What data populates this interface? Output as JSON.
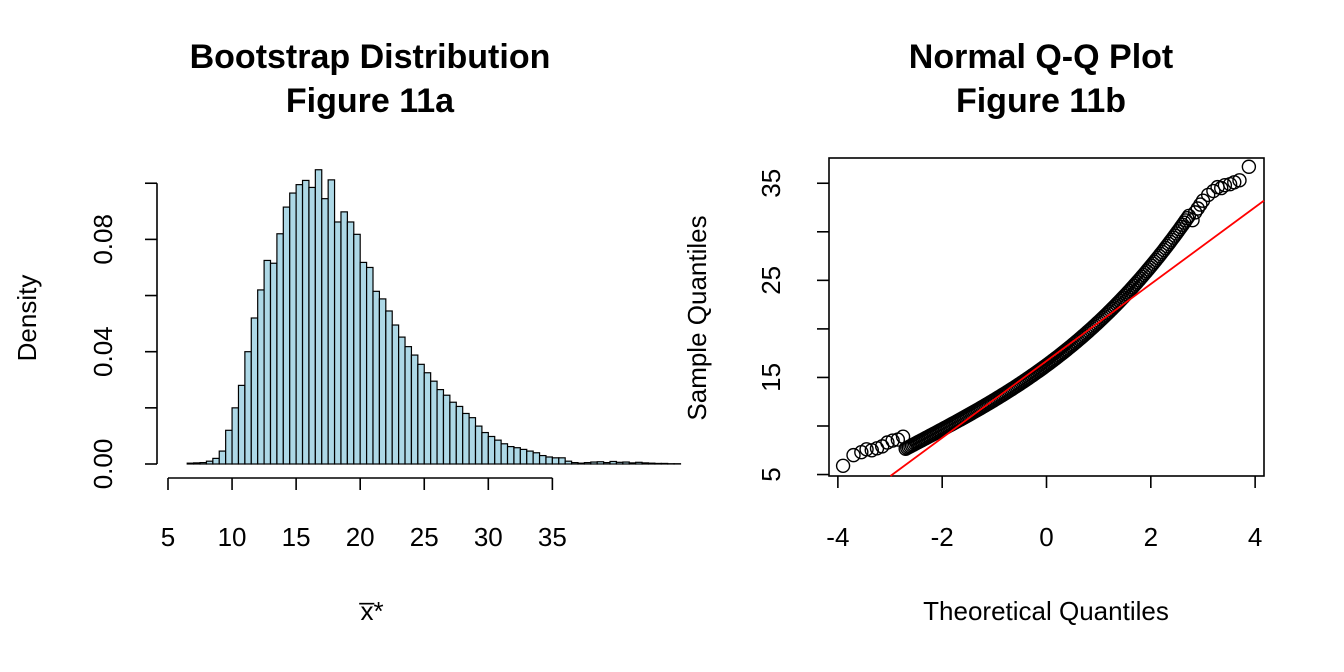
{
  "chart_data": [
    {
      "type": "bar",
      "title": [
        "Bootstrap Distribution",
        "Figure 11a"
      ],
      "xlabel": "x̅*",
      "ylabel": "Density",
      "xlim": [
        5,
        37
      ],
      "ylim": [
        0,
        0.104
      ],
      "xticks": [
        5,
        10,
        15,
        20,
        25,
        30,
        35
      ],
      "yticks": [
        0.0,
        0.04,
        0.08
      ],
      "ytick_labels": [
        "0.00",
        "0.04",
        "0.08"
      ],
      "grid": false,
      "bin_width": 0.5,
      "bar_color": "#add8e6",
      "bins_start": 5.5,
      "densities": [
        0.0,
        0.0,
        0.0003,
        0.0004,
        0.0005,
        0.001,
        0.002,
        0.0046,
        0.012,
        0.02,
        0.028,
        0.04,
        0.052,
        0.062,
        0.0725,
        0.0715,
        0.082,
        0.0915,
        0.0965,
        0.0995,
        0.101,
        0.0985,
        0.1048,
        0.0945,
        0.1012,
        0.0862,
        0.0898,
        0.0862,
        0.0818,
        0.0718,
        0.07,
        0.0615,
        0.0588,
        0.0545,
        0.0495,
        0.0452,
        0.0418,
        0.0388,
        0.0355,
        0.0325,
        0.0295,
        0.0265,
        0.0245,
        0.022,
        0.0205,
        0.018,
        0.0165,
        0.0135,
        0.0112,
        0.0098,
        0.0085,
        0.0072,
        0.0062,
        0.0058,
        0.0052,
        0.0046,
        0.004,
        0.003,
        0.0025,
        0.0022,
        0.0022,
        0.001,
        0.0005,
        0.0003,
        0.0005,
        0.0007,
        0.0008,
        0.0005,
        0.0009,
        0.0006,
        0.0007,
        0.0004,
        0.0006,
        0.0004,
        0.0003,
        0.0002,
        0.0002,
        0.0001,
        0.0001,
        0.0
      ]
    },
    {
      "type": "scatter",
      "title": [
        "Normal Q-Q Plot",
        "Figure 11b"
      ],
      "xlabel": "Theoretical Quantiles",
      "ylabel": "Sample Quantiles",
      "xlim": [
        -4.17,
        4.17
      ],
      "ylim": [
        4.85,
        37.6
      ],
      "xticks": [
        -4,
        -2,
        0,
        2,
        4
      ],
      "yticks": [
        5,
        10,
        15,
        20,
        25,
        30,
        35
      ],
      "ytick_labels": [
        "5",
        "",
        "15",
        "",
        "25",
        "",
        "35"
      ],
      "grid": false,
      "point_color": "#000000",
      "reference_line": {
        "slope": 3.96,
        "intercept": 16.7,
        "color": "#ff0000"
      },
      "tail_points": [
        [
          -3.9,
          5.9
        ],
        [
          -3.7,
          7.0
        ],
        [
          -3.55,
          7.3
        ],
        [
          -3.45,
          7.6
        ],
        [
          -3.35,
          7.5
        ],
        [
          -3.25,
          7.7
        ],
        [
          -3.15,
          7.9
        ],
        [
          -3.05,
          8.3
        ],
        [
          -2.95,
          8.5
        ],
        [
          -2.85,
          8.6
        ],
        [
          -2.75,
          8.9
        ],
        [
          2.8,
          31.2
        ],
        [
          2.85,
          32.0
        ],
        [
          2.9,
          32.4
        ],
        [
          2.95,
          32.8
        ],
        [
          3.0,
          33.2
        ],
        [
          3.1,
          33.8
        ],
        [
          3.2,
          34.2
        ],
        [
          3.28,
          34.6
        ],
        [
          3.35,
          34.5
        ],
        [
          3.42,
          34.8
        ],
        [
          3.52,
          34.9
        ],
        [
          3.6,
          35.1
        ],
        [
          3.7,
          35.3
        ],
        [
          3.88,
          36.7
        ]
      ]
    }
  ]
}
